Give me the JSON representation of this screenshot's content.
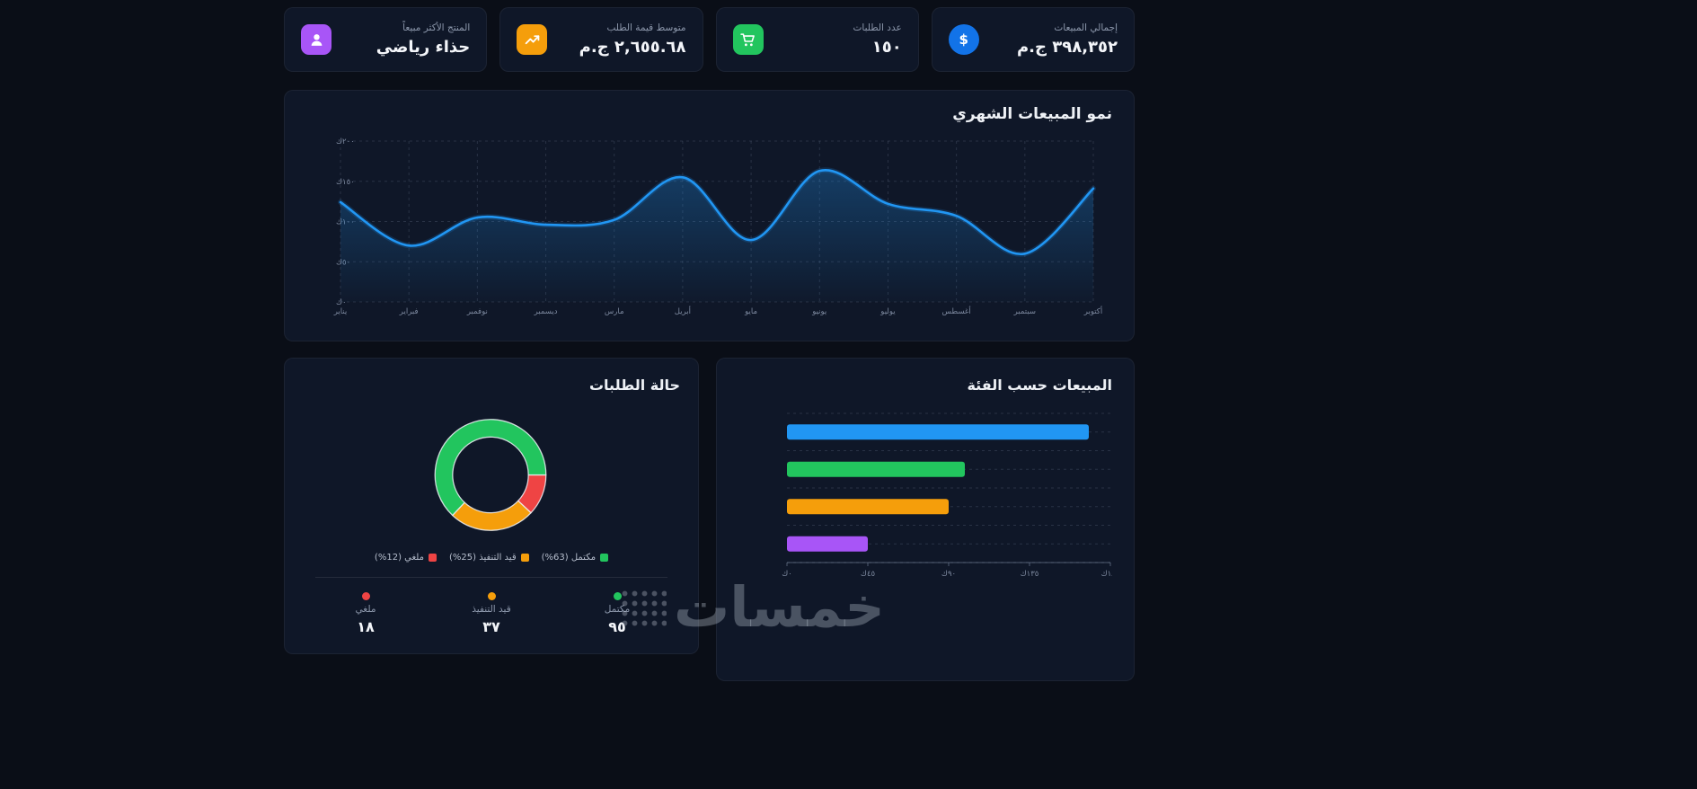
{
  "kpis": [
    {
      "title": "إجمالي المبيعات",
      "value": "٣٩٨,٣٥٢ ج.م",
      "icon": "dollar-circle",
      "color": "#1273e8"
    },
    {
      "title": "عدد الطلبات",
      "value": "١٥٠",
      "icon": "shopping-cart",
      "color": "#22c55e"
    },
    {
      "title": "متوسط قيمة الطلب",
      "value": "٢,٦٥٥.٦٨ ج.م",
      "icon": "trend-up",
      "color": "#f59e0b"
    },
    {
      "title": "المنتج الأكثر مبيعاً",
      "value": "حذاء رياضي",
      "icon": "person-badge",
      "color": "#a855f7"
    }
  ],
  "chart_data": [
    {
      "type": "line",
      "title": "نمو المبيعات الشهري",
      "x": [
        "يناير",
        "فبراير",
        "نوفمبر",
        "ديسمبر",
        "مارس",
        "أبريل",
        "مايو",
        "يونيو",
        "يوليو",
        "أغسطس",
        "سبتمبر",
        "أكتوبر"
      ],
      "values": [
        124,
        70,
        105,
        96,
        102,
        155,
        77,
        163,
        122,
        107,
        60,
        141
      ],
      "unit": "ك",
      "ylim": [
        0,
        200
      ],
      "yticks": [
        "٠ك",
        "٥٠ك",
        "١٠٠ك",
        "١٥٠ك",
        "٢٠٠ك"
      ],
      "color": "#2196f3",
      "grid": "dashed"
    },
    {
      "type": "donut",
      "title": "حالة الطلبات",
      "legend_position": "bottom",
      "segments": [
        {
          "label": "مكتمل",
          "pct": 63,
          "count": "٩٥",
          "legend_label": "مكتمل (63%)",
          "color": "#22c55e"
        },
        {
          "label": "قيد التنفيذ",
          "pct": 25,
          "count": "٣٧",
          "legend_label": "قيد التنفيذ (25%)",
          "color": "#f59e0b"
        },
        {
          "label": "ملغي",
          "pct": 12,
          "count": "١٨",
          "legend_label": "ملغي (12%)",
          "color": "#ef4444"
        }
      ]
    },
    {
      "type": "bar",
      "orientation": "horizontal",
      "title": "المبيعات حسب الفئة",
      "categories": [
        "",
        "",
        "",
        ""
      ],
      "values": [
        168,
        99,
        90,
        45
      ],
      "unit": "ك",
      "xlim": [
        0,
        180
      ],
      "xticks": [
        "٠ك",
        "٤٥ك",
        "٩٠ك",
        "١٣٥ك",
        "١٨٠ك"
      ],
      "colors": [
        "#2196f3",
        "#22c55e",
        "#f59e0b",
        "#a855f7"
      ],
      "grid": "dashed"
    }
  ],
  "watermark": {
    "text": "خمسات"
  }
}
